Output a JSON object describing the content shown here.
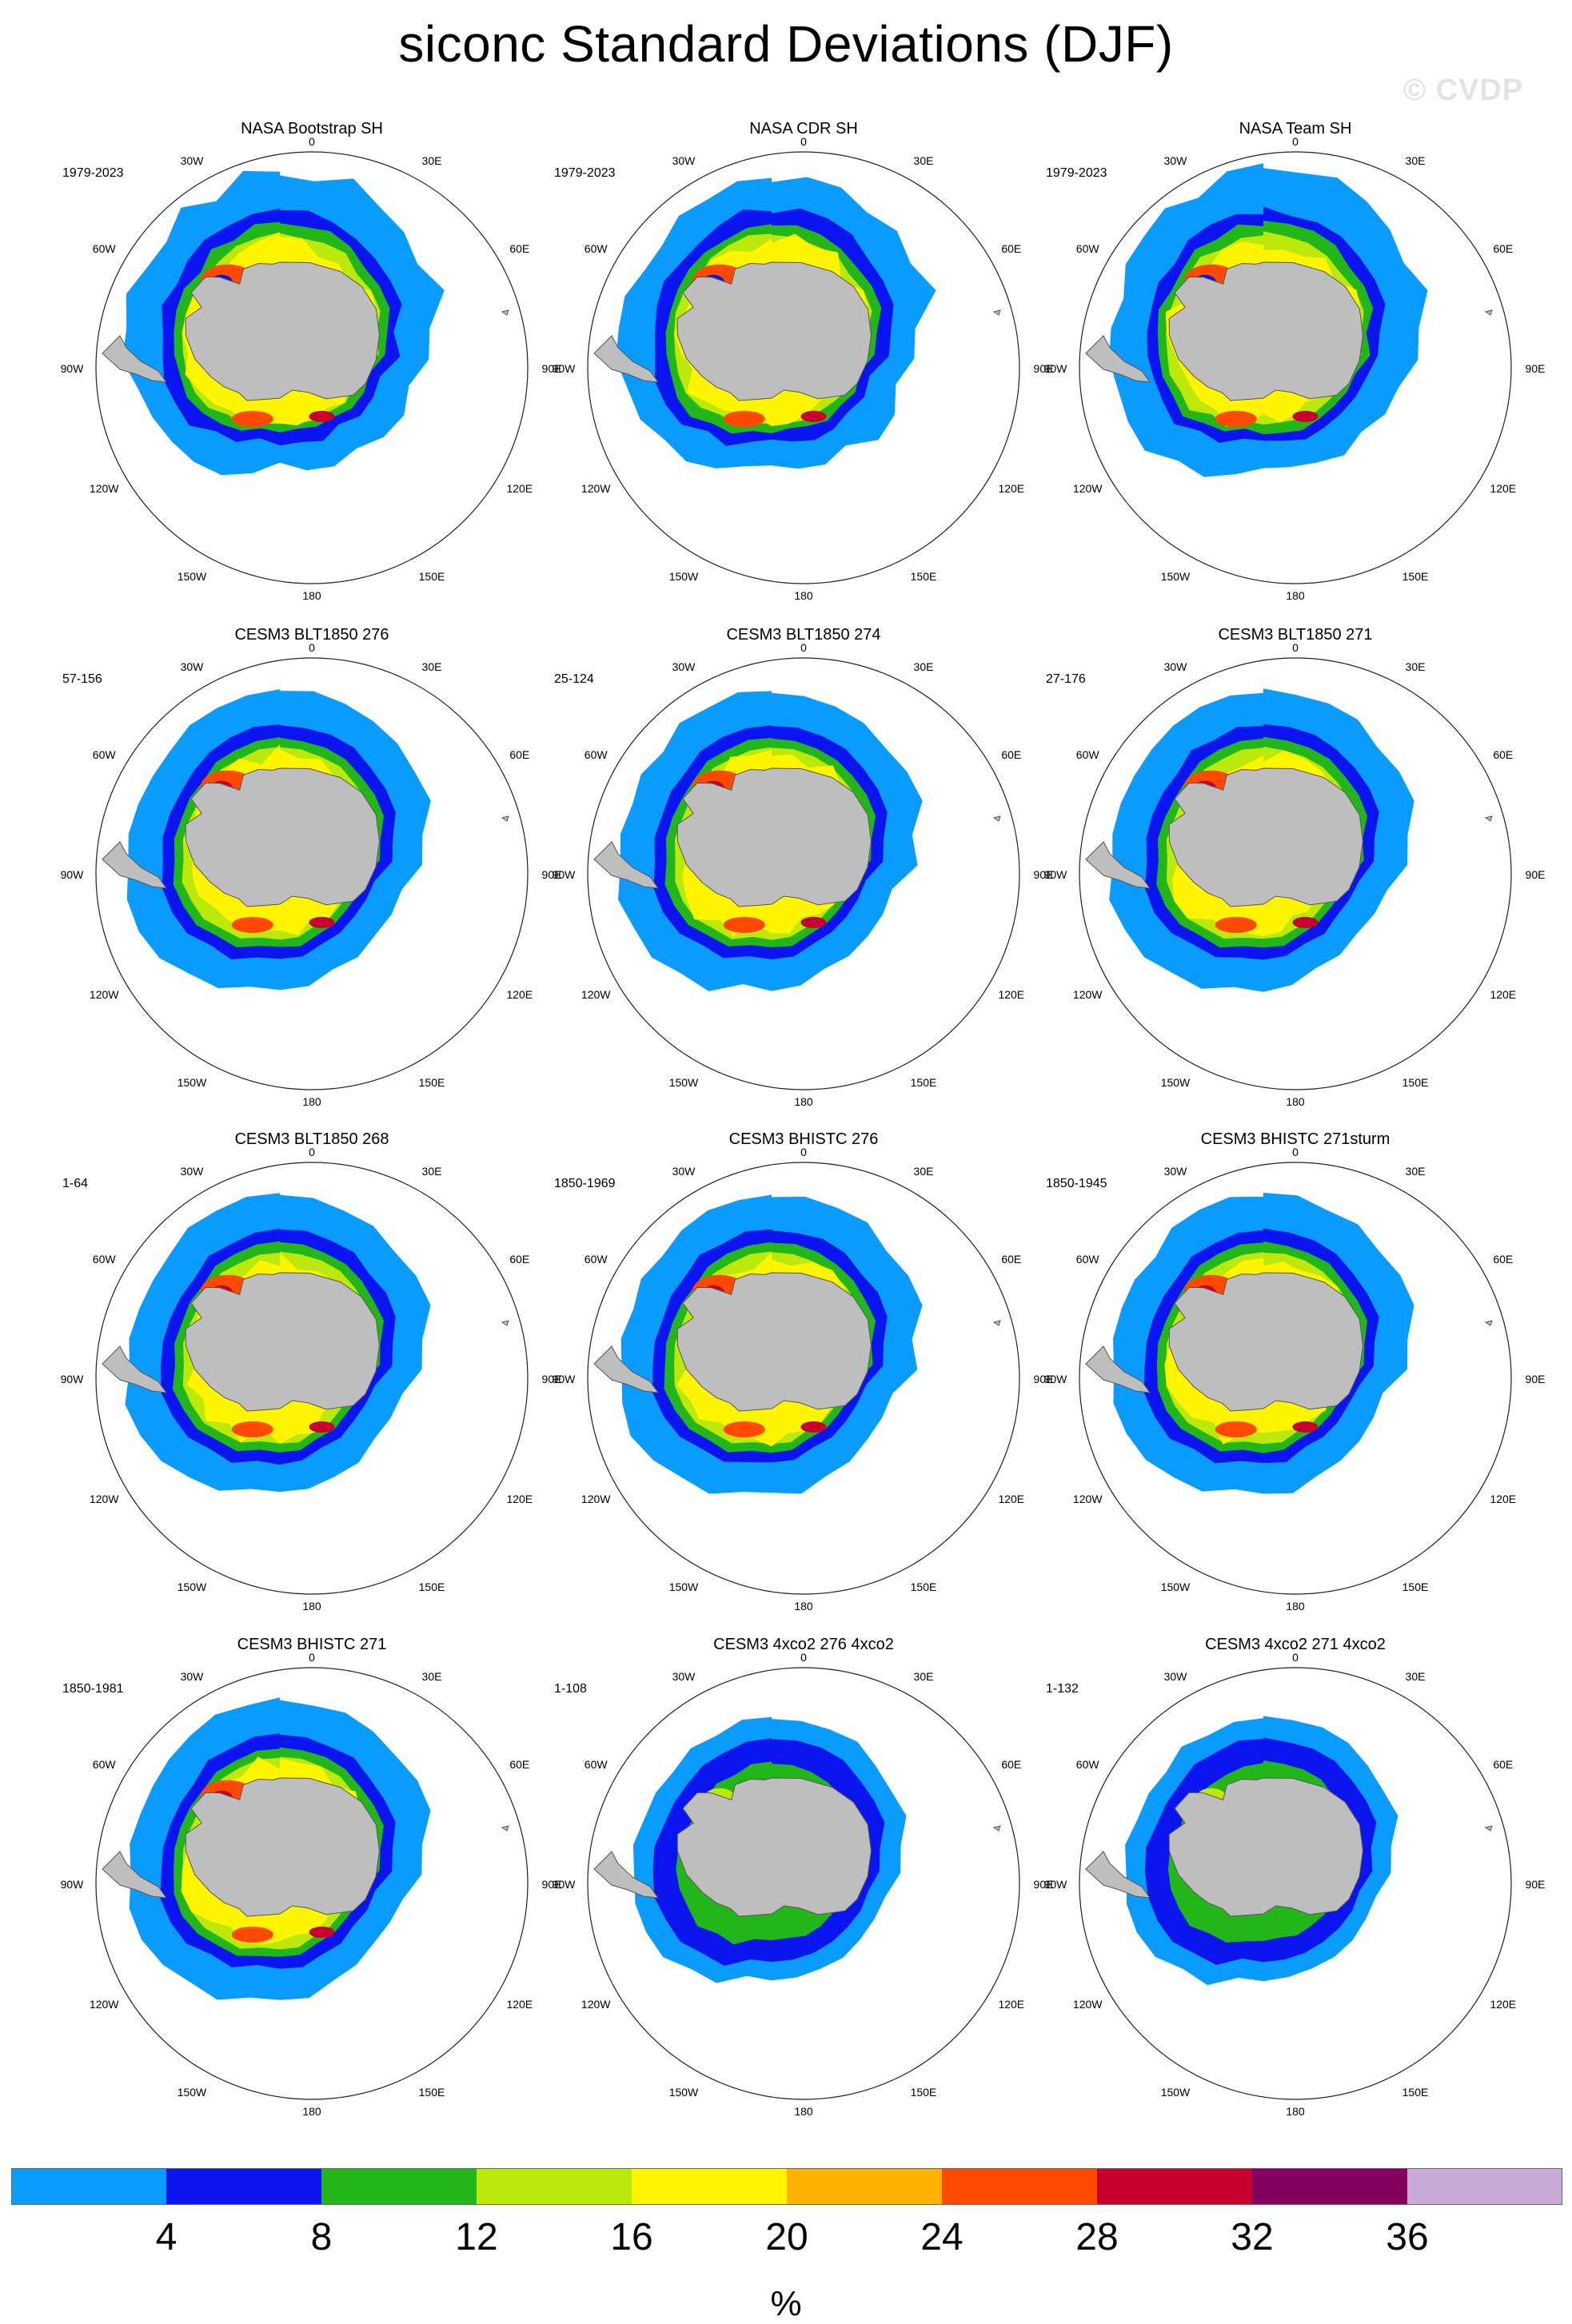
{
  "figure": {
    "title": "siconc Standard Deviations (DJF)",
    "watermark": "© CVDP"
  },
  "map": {
    "projection": "south-polar-stereographic",
    "longitude_labels": [
      "0",
      "30E",
      "60E",
      "90E",
      "120E",
      "150E",
      "180",
      "150W",
      "120W",
      "90W",
      "60W",
      "30W"
    ],
    "land_color": "#bebebe"
  },
  "panels": [
    {
      "title": "NASA Bootstrap SH",
      "period": "1979-2023",
      "kind": "obs"
    },
    {
      "title": "NASA CDR SH",
      "period": "1979-2023",
      "kind": "obs"
    },
    {
      "title": "NASA Team SH",
      "period": "1979-2023",
      "kind": "obs"
    },
    {
      "title": "CESM3 BLT1850 276",
      "period": "57-156",
      "kind": "model"
    },
    {
      "title": "CESM3 BLT1850 274",
      "period": "25-124",
      "kind": "model"
    },
    {
      "title": "CESM3 BLT1850 271",
      "period": "27-176",
      "kind": "model"
    },
    {
      "title": "CESM3 BLT1850 268",
      "period": "1-64",
      "kind": "model"
    },
    {
      "title": "CESM3 BHISTC 276",
      "period": "1850-1969",
      "kind": "model"
    },
    {
      "title": "CESM3 BHISTC 271sturm",
      "period": "1850-1945",
      "kind": "model"
    },
    {
      "title": "CESM3 BHISTC 271",
      "period": "1850-1981",
      "kind": "model"
    },
    {
      "title": "CESM3 4xco2 276 4xco2",
      "period": "1-108",
      "kind": "warm"
    },
    {
      "title": "CESM3 4xco2 271 4xco2",
      "period": "1-132",
      "kind": "warm"
    }
  ],
  "colorbar": {
    "unit": "%",
    "tick_labels": [
      "4",
      "8",
      "12",
      "16",
      "20",
      "24",
      "28",
      "32",
      "36"
    ],
    "colors": [
      "#0a9bff",
      "#0a14ef",
      "#22b61b",
      "#bde80c",
      "#fff500",
      "#ffb300",
      "#ff4800",
      "#c8002e",
      "#84005e",
      "#c7aad8"
    ]
  }
}
